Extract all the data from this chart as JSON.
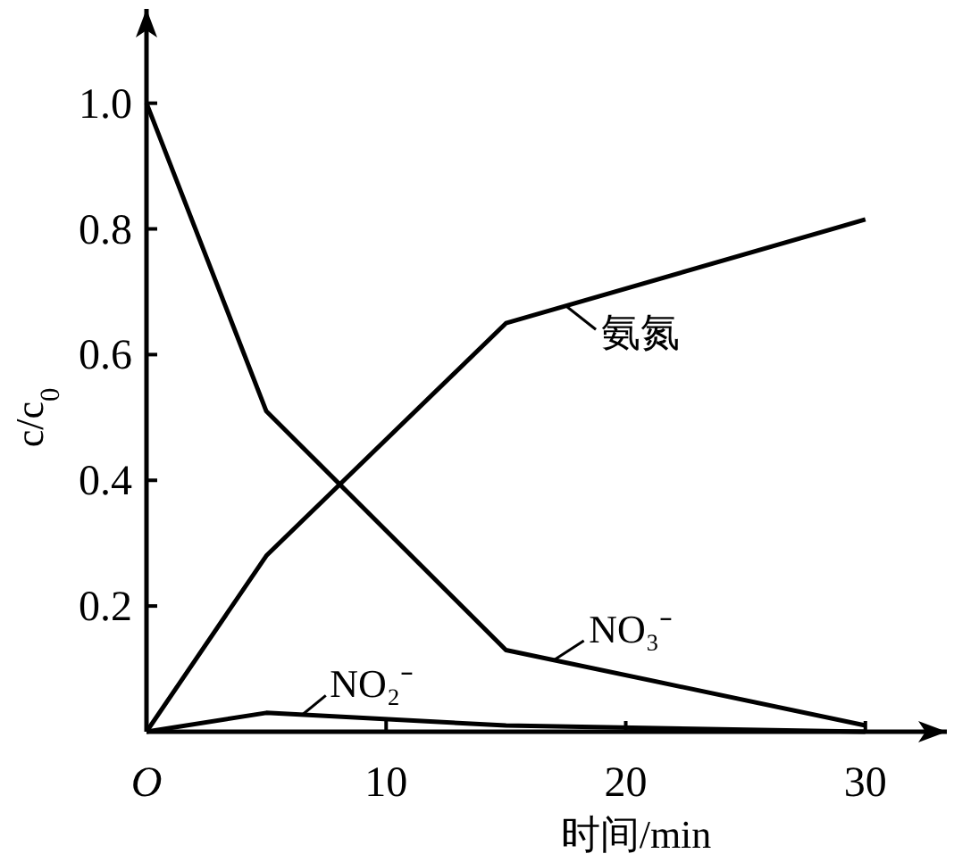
{
  "chart_data": {
    "type": "line",
    "xlabel": "时间/min",
    "ylabel": "c/c$_{0}$",
    "xlim": [
      0,
      33.4
    ],
    "ylim": [
      0,
      1.15
    ],
    "xticks": [
      {
        "value": 0,
        "label": "O"
      },
      10,
      20,
      30
    ],
    "yticks": [
      0.2,
      0.4,
      0.6,
      0.8,
      {
        "value": 1,
        "label": "1.0"
      }
    ],
    "grid": false,
    "legend": "bottom left",
    "marker": "none",
    "line_style": "solid",
    "series": [
      {
        "name": "氨氮",
        "color": "#000000",
        "x": [
          0,
          5,
          15,
          30
        ],
        "values": [
          0,
          0.28,
          0.65,
          0.815
        ]
      },
      {
        "name": "NO₃⁻",
        "color": "#000000",
        "x": [
          0,
          5,
          15,
          30
        ],
        "values": [
          1.0,
          0.51,
          0.13,
          0.01
        ]
      },
      {
        "name": "NO₂⁻",
        "color": "#000000",
        "x": [
          0,
          5,
          15,
          30
        ],
        "values": [
          0,
          0.03,
          0.01,
          0.0
        ]
      }
    ]
  }
}
